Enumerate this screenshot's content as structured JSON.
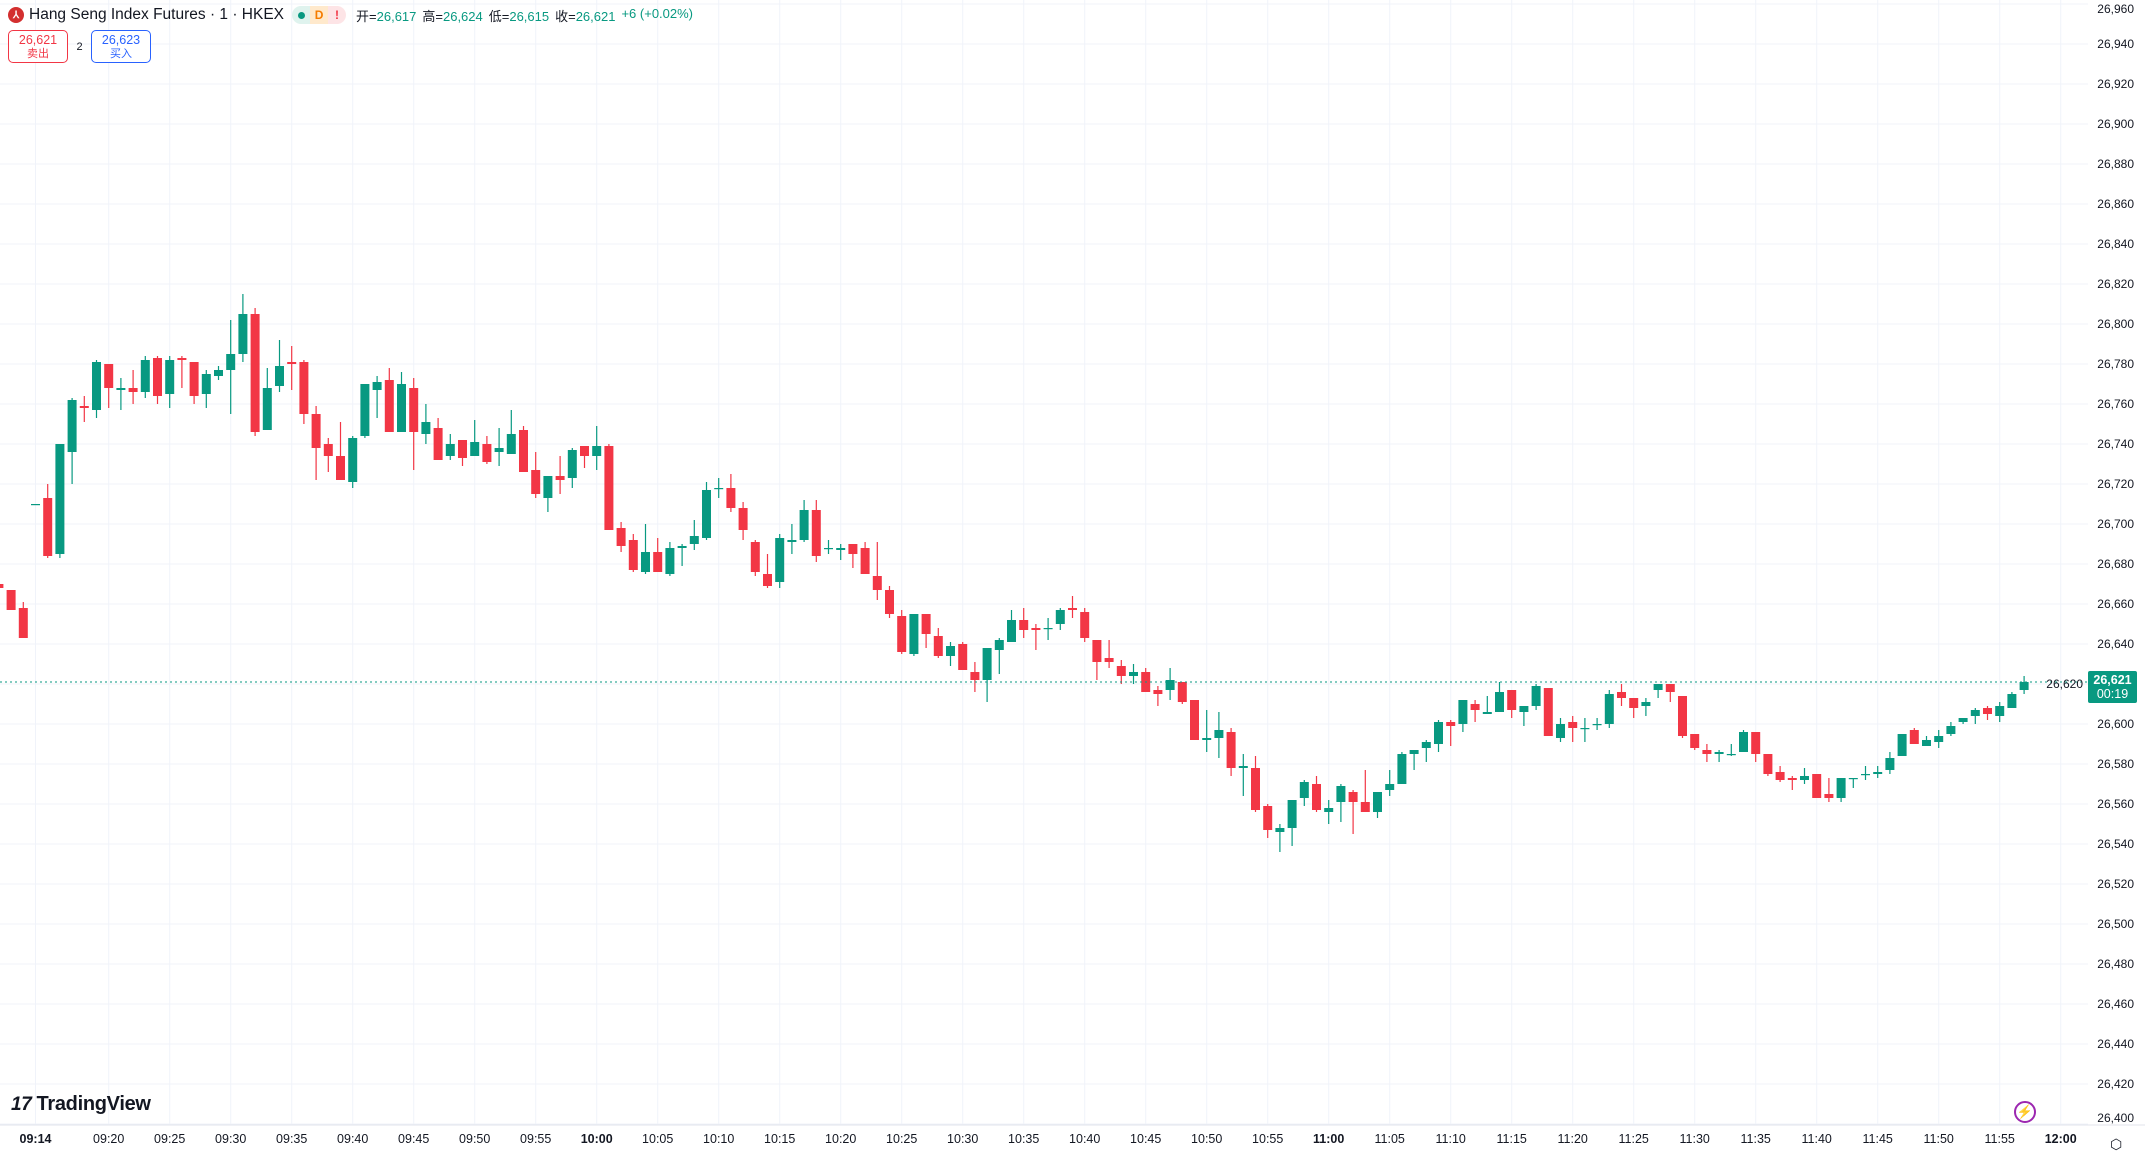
{
  "legend": {
    "symbol_icon": "hkex-logo-icon",
    "title": "Hang Seng Index Futures · 1 · HKEX",
    "status_pills": [
      "market-open-dot",
      "D",
      "!"
    ],
    "ohlc": [
      {
        "label": "开=",
        "value": "26,617"
      },
      {
        "label": "高=",
        "value": "26,624"
      },
      {
        "label": "低=",
        "value": "26,615"
      },
      {
        "label": "收=",
        "value": "26,621"
      }
    ],
    "change": "+6 (+0.02%)"
  },
  "trade": {
    "sell_price": "26,621",
    "sell_label": "卖出",
    "spread": "2",
    "buy_price": "26,623",
    "buy_label": "买入"
  },
  "last_price": {
    "value": "26,621",
    "countdown": "00:19"
  },
  "branding": {
    "logo_text": "TradingView"
  },
  "colors": {
    "up": "#089981",
    "down": "#F23645",
    "grid": "#f0f3fa",
    "current_price": "#089981",
    "bolt": "#9c27b0"
  },
  "chart_data": {
    "type": "candlestick",
    "interval": "1 minute",
    "ylim": [
      26400,
      26960
    ],
    "grid": true,
    "price_ticks": [
      "26,960",
      "26,940",
      "26,920",
      "26,900",
      "26,880",
      "26,860",
      "26,840",
      "26,820",
      "26,800",
      "26,780",
      "26,760",
      "26,740",
      "26,720",
      "26,700",
      "26,680",
      "26,660",
      "26,640",
      "26,620",
      "26,600",
      "26,580",
      "26,560",
      "26,540",
      "26,520",
      "26,500",
      "26,480",
      "26,460",
      "26,440",
      "26,420",
      "26,400"
    ],
    "time_ticks": [
      "09:14",
      "09:20",
      "09:25",
      "09:30",
      "09:35",
      "09:40",
      "09:45",
      "09:50",
      "09:55",
      "10:00",
      "10:05",
      "10:10",
      "10:15",
      "10:20",
      "10:25",
      "10:30",
      "10:35",
      "10:40",
      "10:45",
      "10:50",
      "10:55",
      "11:00",
      "11:05",
      "11:10",
      "11:15",
      "11:20",
      "11:25",
      "11:30",
      "11:35",
      "11:40",
      "11:45",
      "11:50",
      "11:55",
      "12:00"
    ],
    "candle_fields": [
      "time",
      "open",
      "high",
      "low",
      "close"
    ],
    "candles": [
      [
        "09:11",
        26670,
        26670,
        26668,
        26668
      ],
      [
        "09:12",
        26667,
        26667,
        26657,
        26657
      ],
      [
        "09:13",
        26658,
        26661,
        26643,
        26643
      ],
      [
        "09:14",
        26710,
        26710,
        26710,
        26710
      ],
      [
        "09:15",
        26713,
        26720,
        26683,
        26684
      ],
      [
        "09:16",
        26685,
        26740,
        26683,
        26740
      ],
      [
        "09:17",
        26736,
        26763,
        26720,
        26762
      ],
      [
        "09:18",
        26759,
        26764,
        26751,
        26758
      ],
      [
        "09:19",
        26757,
        26782,
        26753,
        26781
      ],
      [
        "09:20",
        26780,
        26780,
        26758,
        26768
      ],
      [
        "09:21",
        26767,
        26773,
        26757,
        26768
      ],
      [
        "09:22",
        26768,
        26777,
        26760,
        26766
      ],
      [
        "09:23",
        26766,
        26784,
        26763,
        26782
      ],
      [
        "09:24",
        26783,
        26784,
        26760,
        26764
      ],
      [
        "09:25",
        26765,
        26784,
        26758,
        26782
      ],
      [
        "09:26",
        26783,
        26784,
        26768,
        26782
      ],
      [
        "09:27",
        26781,
        26781,
        26760,
        26764
      ],
      [
        "09:28",
        26765,
        26777,
        26758,
        26775
      ],
      [
        "09:29",
        26774,
        26779,
        26772,
        26777
      ],
      [
        "09:30",
        26777,
        26802,
        26755,
        26785
      ],
      [
        "09:31",
        26785,
        26815,
        26781,
        26805
      ],
      [
        "09:32",
        26805,
        26808,
        26744,
        26746
      ],
      [
        "09:33",
        26747,
        26778,
        26747,
        26768
      ],
      [
        "09:34",
        26769,
        26792,
        26766,
        26779
      ],
      [
        "09:35",
        26781,
        26789,
        26767,
        26780
      ],
      [
        "09:36",
        26781,
        26782,
        26750,
        26755
      ],
      [
        "09:37",
        26755,
        26759,
        26722,
        26738
      ],
      [
        "09:38",
        26740,
        26743,
        26726,
        26734
      ],
      [
        "09:39",
        26734,
        26751,
        26722,
        26722
      ],
      [
        "09:40",
        26721,
        26744,
        26718,
        26743
      ],
      [
        "09:41",
        26744,
        26770,
        26743,
        26770
      ],
      [
        "09:42",
        26767,
        26774,
        26753,
        26771
      ],
      [
        "09:43",
        26772,
        26778,
        26746,
        26746
      ],
      [
        "09:44",
        26746,
        26776,
        26746,
        26770
      ],
      [
        "09:45",
        26768,
        26773,
        26727,
        26746
      ],
      [
        "09:46",
        26745,
        26760,
        26740,
        26751
      ],
      [
        "09:47",
        26748,
        26753,
        26732,
        26732
      ],
      [
        "09:48",
        26734,
        26745,
        26732,
        26740
      ],
      [
        "09:49",
        26742,
        26742,
        26729,
        26733
      ],
      [
        "09:50",
        26734,
        26752,
        26734,
        26741
      ],
      [
        "09:51",
        26740,
        26744,
        26730,
        26731
      ],
      [
        "09:52",
        26736,
        26748,
        26729,
        26738
      ],
      [
        "09:53",
        26735,
        26757,
        26735,
        26745
      ],
      [
        "09:54",
        26747,
        26749,
        26726,
        26726
      ],
      [
        "09:55",
        26727,
        26736,
        26713,
        26715
      ],
      [
        "09:56",
        26713,
        26724,
        26706,
        26724
      ],
      [
        "09:57",
        26724,
        26734,
        26715,
        26722
      ],
      [
        "09:58",
        26723,
        26738,
        26718,
        26737
      ],
      [
        "09:59",
        26739,
        26739,
        26728,
        26734
      ],
      [
        "10:00",
        26734,
        26749,
        26727,
        26739
      ],
      [
        "10:01",
        26739,
        26740,
        26697,
        26697
      ],
      [
        "10:02",
        26698,
        26701,
        26686,
        26689
      ],
      [
        "10:03",
        26692,
        26695,
        26676,
        26677
      ],
      [
        "10:04",
        26676,
        26700,
        26675,
        26686
      ],
      [
        "10:05",
        26686,
        26693,
        26676,
        26676
      ],
      [
        "10:06",
        26675,
        26691,
        26674,
        26688
      ],
      [
        "10:07",
        26688,
        26690,
        26679,
        26689
      ],
      [
        "10:08",
        26690,
        26702,
        26687,
        26694
      ],
      [
        "10:09",
        26693,
        26721,
        26692,
        26717
      ],
      [
        "10:10",
        26718,
        26723,
        26713,
        26718
      ],
      [
        "10:11",
        26718,
        26725,
        26706,
        26708
      ],
      [
        "10:12",
        26708,
        26711,
        26692,
        26697
      ],
      [
        "10:13",
        26691,
        26692,
        26674,
        26676
      ],
      [
        "10:14",
        26675,
        26685,
        26668,
        26669
      ],
      [
        "10:15",
        26671,
        26695,
        26668,
        26693
      ],
      [
        "10:16",
        26691,
        26700,
        26685,
        26692
      ],
      [
        "10:17",
        26692,
        26712,
        26691,
        26707
      ],
      [
        "10:18",
        26707,
        26712,
        26681,
        26684
      ],
      [
        "10:19",
        26688,
        26692,
        26685,
        26688
      ],
      [
        "10:20",
        26687,
        26690,
        26682,
        26688
      ],
      [
        "10:21",
        26690,
        26690,
        26678,
        26685
      ],
      [
        "10:22",
        26688,
        26691,
        26675,
        26675
      ],
      [
        "10:23",
        26674,
        26691,
        26662,
        26667
      ],
      [
        "10:24",
        26667,
        26669,
        26653,
        26655
      ],
      [
        "10:25",
        26654,
        26657,
        26635,
        26636
      ],
      [
        "10:26",
        26635,
        26655,
        26634,
        26655
      ],
      [
        "10:27",
        26655,
        26655,
        26638,
        26645
      ],
      [
        "10:28",
        26644,
        26648,
        26633,
        26634
      ],
      [
        "10:29",
        26634,
        26641,
        26629,
        26639
      ],
      [
        "10:30",
        26640,
        26641,
        26627,
        26627
      ],
      [
        "10:31",
        26626,
        26631,
        26616,
        26622
      ],
      [
        "10:32",
        26622,
        26638,
        26611,
        26638
      ],
      [
        "10:33",
        26637,
        26643,
        26625,
        26642
      ],
      [
        "10:34",
        26641,
        26657,
        26641,
        26652
      ],
      [
        "10:35",
        26652,
        26658,
        26643,
        26647
      ],
      [
        "10:36",
        26648,
        26650,
        26637,
        26647
      ],
      [
        "10:37",
        26648,
        26653,
        26642,
        26648
      ],
      [
        "10:38",
        26650,
        26658,
        26647,
        26657
      ],
      [
        "10:39",
        26658,
        26664,
        26653,
        26657
      ],
      [
        "10:40",
        26656,
        26658,
        26641,
        26643
      ],
      [
        "10:41",
        26642,
        26642,
        26622,
        26631
      ],
      [
        "10:42",
        26633,
        26642,
        26628,
        26631
      ],
      [
        "10:43",
        26629,
        26632,
        26620,
        26624
      ],
      [
        "10:44",
        26624,
        26630,
        26620,
        26626
      ],
      [
        "10:45",
        26626,
        26628,
        26616,
        26616
      ],
      [
        "10:46",
        26617,
        26619,
        26609,
        26615
      ],
      [
        "10:47",
        26617,
        26628,
        26612,
        26622
      ],
      [
        "10:48",
        26621,
        26621,
        26610,
        26611
      ],
      [
        "10:49",
        26612,
        26612,
        26592,
        26592
      ],
      [
        "10:50",
        26592,
        26607,
        26586,
        26593
      ],
      [
        "10:51",
        26593,
        26606,
        26583,
        26597
      ],
      [
        "10:52",
        26596,
        26598,
        26574,
        26578
      ],
      [
        "10:53",
        26578,
        26585,
        26564,
        26579
      ],
      [
        "10:54",
        26578,
        26584,
        26556,
        26557
      ],
      [
        "10:55",
        26559,
        26560,
        26543,
        26547
      ],
      [
        "10:56",
        26546,
        26550,
        26536,
        26548
      ],
      [
        "10:57",
        26548,
        26562,
        26539,
        26562
      ],
      [
        "10:58",
        26563,
        26572,
        26559,
        26571
      ],
      [
        "10:59",
        26570,
        26574,
        26556,
        26557
      ],
      [
        "11:00",
        26556,
        26562,
        26550,
        26558
      ],
      [
        "11:01",
        26561,
        26570,
        26551,
        26569
      ],
      [
        "11:02",
        26566,
        26567,
        26545,
        26561
      ],
      [
        "11:03",
        26561,
        26577,
        26556,
        26556
      ],
      [
        "11:04",
        26556,
        26566,
        26553,
        26566
      ],
      [
        "11:05",
        26567,
        26577,
        26564,
        26570
      ],
      [
        "11:06",
        26570,
        26586,
        26570,
        26585
      ],
      [
        "11:07",
        26585,
        26587,
        26577,
        26587
      ],
      [
        "11:08",
        26588,
        26592,
        26581,
        26591
      ],
      [
        "11:09",
        26590,
        26602,
        26586,
        26601
      ],
      [
        "11:10",
        26601,
        26602,
        26589,
        26599
      ],
      [
        "11:11",
        26600,
        26612,
        26596,
        26612
      ],
      [
        "11:12",
        26610,
        26612,
        26601,
        26607
      ],
      [
        "11:13",
        26605,
        26614,
        26605,
        26606
      ],
      [
        "11:14",
        26606,
        26621,
        26606,
        26616
      ],
      [
        "11:15",
        26617,
        26617,
        26603,
        26607
      ],
      [
        "11:16",
        26606,
        26609,
        26599,
        26609
      ],
      [
        "11:17",
        26609,
        26620,
        26607,
        26619
      ],
      [
        "11:18",
        26618,
        26618,
        26594,
        26594
      ],
      [
        "11:19",
        26593,
        26603,
        26591,
        26600
      ],
      [
        "11:20",
        26601,
        26604,
        26591,
        26598
      ],
      [
        "11:21",
        26598,
        26603,
        26591,
        26598
      ],
      [
        "11:22",
        26600,
        26603,
        26597,
        26600
      ],
      [
        "11:23",
        26600,
        26617,
        26598,
        26615
      ],
      [
        "11:24",
        26616,
        26620,
        26609,
        26613
      ],
      [
        "11:25",
        26613,
        26613,
        26603,
        26608
      ],
      [
        "11:26",
        26609,
        26613,
        26604,
        26611
      ],
      [
        "11:27",
        26617,
        26620,
        26613,
        26620
      ],
      [
        "11:28",
        26620,
        26620,
        26611,
        26616
      ],
      [
        "11:29",
        26614,
        26614,
        26593,
        26594
      ],
      [
        "11:30",
        26595,
        26595,
        26587,
        26588
      ],
      [
        "11:31",
        26587,
        26590,
        26581,
        26585
      ],
      [
        "11:32",
        26585,
        26587,
        26581,
        26586
      ],
      [
        "11:33",
        26585,
        26590,
        26584,
        26585
      ],
      [
        "11:34",
        26586,
        26597,
        26586,
        26596
      ],
      [
        "11:35",
        26596,
        26596,
        26581,
        26585
      ],
      [
        "11:36",
        26585,
        26585,
        26574,
        26575
      ],
      [
        "11:37",
        26576,
        26579,
        26571,
        26572
      ],
      [
        "11:38",
        26573,
        26574,
        26567,
        26572
      ],
      [
        "11:39",
        26572,
        26578,
        26570,
        26574
      ],
      [
        "11:40",
        26575,
        26575,
        26563,
        26563
      ],
      [
        "11:41",
        26565,
        26573,
        26561,
        26563
      ],
      [
        "11:42",
        26563,
        26573,
        26561,
        26573
      ],
      [
        "11:43",
        26573,
        26573,
        26568,
        26573
      ],
      [
        "11:44",
        26575,
        26579,
        26572,
        26575
      ],
      [
        "11:45",
        26575,
        26579,
        26573,
        26576
      ],
      [
        "11:46",
        26577,
        26586,
        26575,
        26583
      ],
      [
        "11:47",
        26584,
        26595,
        26584,
        26595
      ],
      [
        "11:48",
        26597,
        26598,
        26590,
        26590
      ],
      [
        "11:49",
        26589,
        26594,
        26589,
        26592
      ],
      [
        "11:50",
        26591,
        26597,
        26588,
        26594
      ],
      [
        "11:51",
        26595,
        26601,
        26594,
        26599
      ],
      [
        "11:52",
        26601,
        26603,
        26600,
        26603
      ],
      [
        "11:53",
        26604,
        26608,
        26600,
        26607
      ],
      [
        "11:54",
        26608,
        26609,
        26602,
        26605
      ],
      [
        "11:55",
        26604,
        26611,
        26601,
        26609
      ],
      [
        "11:56",
        26608,
        26616,
        26608,
        26615
      ],
      [
        "11:57",
        26617,
        26624,
        26615,
        26621
      ]
    ],
    "current_price": 26621
  }
}
